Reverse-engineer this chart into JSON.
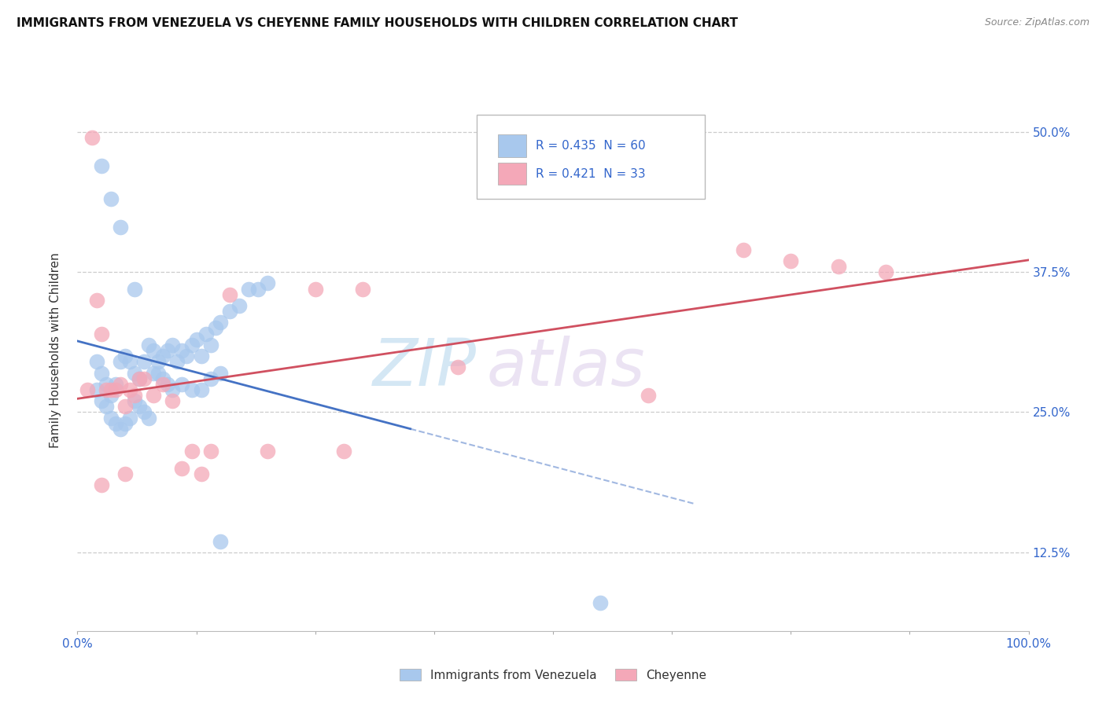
{
  "title": "IMMIGRANTS FROM VENEZUELA VS CHEYENNE FAMILY HOUSEHOLDS WITH CHILDREN CORRELATION CHART",
  "source": "Source: ZipAtlas.com",
  "ylabel": "Family Households with Children",
  "ytick_values": [
    0.125,
    0.25,
    0.375,
    0.5
  ],
  "ytick_labels": [
    "12.5%",
    "25.0%",
    "37.5%",
    "50.0%"
  ],
  "legend_blue_r": "R = 0.435",
  "legend_blue_n": "N = 60",
  "legend_pink_r": "R = 0.421",
  "legend_pink_n": "N = 33",
  "legend_blue_label": "Immigrants from Venezuela",
  "legend_pink_label": "Cheyenne",
  "blue_color": "#A8C8ED",
  "pink_color": "#F4A8B8",
  "line_blue_color": "#4472C4",
  "line_pink_color": "#D05060",
  "watermark_zip": "ZIP",
  "watermark_atlas": "atlas",
  "xlim": [
    0.0,
    1.0
  ],
  "ylim": [
    0.055,
    0.555
  ],
  "blue_x": [
    0.02,
    0.025,
    0.03,
    0.035,
    0.04,
    0.045,
    0.05,
    0.055,
    0.06,
    0.065,
    0.07,
    0.075,
    0.08,
    0.085,
    0.09,
    0.095,
    0.1,
    0.105,
    0.11,
    0.115,
    0.12,
    0.125,
    0.13,
    0.135,
    0.14,
    0.145,
    0.15,
    0.02,
    0.025,
    0.03,
    0.035,
    0.04,
    0.045,
    0.05,
    0.055,
    0.06,
    0.065,
    0.07,
    0.075,
    0.08,
    0.085,
    0.09,
    0.095,
    0.1,
    0.11,
    0.12,
    0.13,
    0.14,
    0.15,
    0.16,
    0.17,
    0.18,
    0.19,
    0.2,
    0.025,
    0.035,
    0.045,
    0.06,
    0.15,
    0.55
  ],
  "blue_y": [
    0.295,
    0.285,
    0.275,
    0.265,
    0.275,
    0.295,
    0.3,
    0.295,
    0.285,
    0.28,
    0.295,
    0.31,
    0.305,
    0.295,
    0.3,
    0.305,
    0.31,
    0.295,
    0.305,
    0.3,
    0.31,
    0.315,
    0.3,
    0.32,
    0.31,
    0.325,
    0.33,
    0.27,
    0.26,
    0.255,
    0.245,
    0.24,
    0.235,
    0.24,
    0.245,
    0.26,
    0.255,
    0.25,
    0.245,
    0.285,
    0.285,
    0.28,
    0.275,
    0.27,
    0.275,
    0.27,
    0.27,
    0.28,
    0.285,
    0.34,
    0.345,
    0.36,
    0.36,
    0.365,
    0.47,
    0.44,
    0.415,
    0.36,
    0.135,
    0.08
  ],
  "pink_x": [
    0.015,
    0.02,
    0.025,
    0.03,
    0.035,
    0.04,
    0.045,
    0.05,
    0.055,
    0.06,
    0.065,
    0.07,
    0.08,
    0.09,
    0.1,
    0.11,
    0.12,
    0.13,
    0.14,
    0.16,
    0.2,
    0.25,
    0.3,
    0.4,
    0.6,
    0.7,
    0.75,
    0.8,
    0.85,
    0.01,
    0.025,
    0.05,
    0.28
  ],
  "pink_y": [
    0.495,
    0.35,
    0.32,
    0.27,
    0.27,
    0.27,
    0.275,
    0.255,
    0.27,
    0.265,
    0.28,
    0.28,
    0.265,
    0.275,
    0.26,
    0.2,
    0.215,
    0.195,
    0.215,
    0.355,
    0.215,
    0.36,
    0.36,
    0.29,
    0.265,
    0.395,
    0.385,
    0.38,
    0.375,
    0.27,
    0.185,
    0.195,
    0.215
  ]
}
